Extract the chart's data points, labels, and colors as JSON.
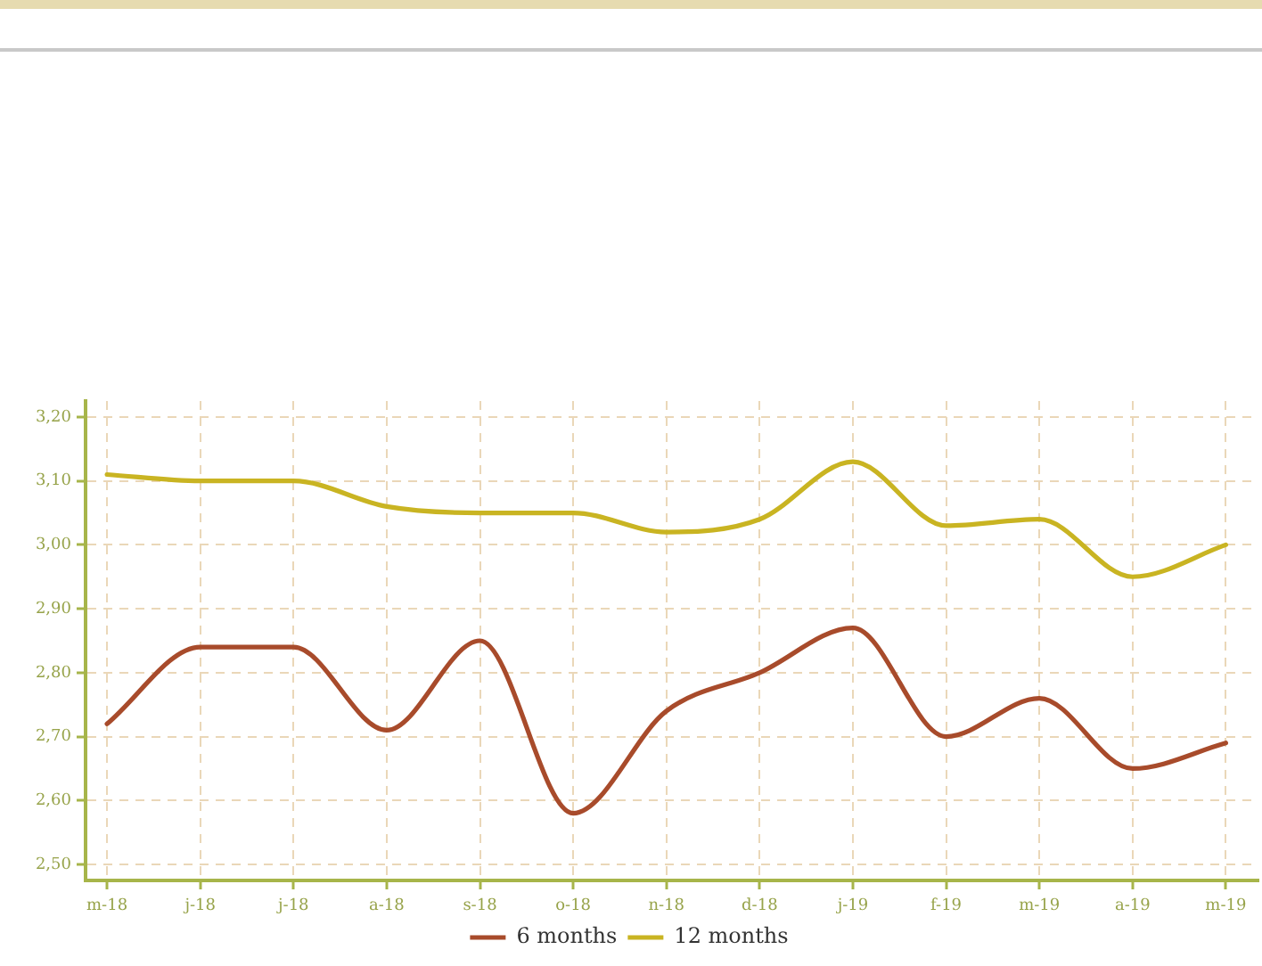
{
  "chart_data": {
    "type": "line",
    "categories": [
      "m-18",
      "j-18",
      "j-18",
      "a-18",
      "s-18",
      "o-18",
      "n-18",
      "d-18",
      "j-19",
      "f-19",
      "m-19",
      "a-19",
      "m-19"
    ],
    "series": [
      {
        "name": "6 months",
        "color": "#a84b2b",
        "values": [
          2.72,
          2.84,
          2.84,
          2.71,
          2.85,
          2.58,
          2.74,
          2.8,
          2.87,
          2.7,
          2.76,
          2.65,
          2.69
        ]
      },
      {
        "name": "12 months",
        "color": "#c9b422",
        "values": [
          3.11,
          3.1,
          3.1,
          3.06,
          3.05,
          3.05,
          3.02,
          3.04,
          3.13,
          3.03,
          3.04,
          2.95,
          3.0
        ]
      }
    ],
    "ylim": [
      2.475,
      3.225
    ],
    "yticks": [
      {
        "value": 2.5,
        "label": "2,50"
      },
      {
        "value": 2.6,
        "label": "2,60"
      },
      {
        "value": 2.7,
        "label": "2,70"
      },
      {
        "value": 2.8,
        "label": "2,80"
      },
      {
        "value": 2.9,
        "label": "2,90"
      },
      {
        "value": 3.0,
        "label": "3,00"
      },
      {
        "value": 3.1,
        "label": "3,10"
      },
      {
        "value": 3.2,
        "label": "3,20"
      }
    ],
    "grid": true,
    "legend": "bottom"
  }
}
